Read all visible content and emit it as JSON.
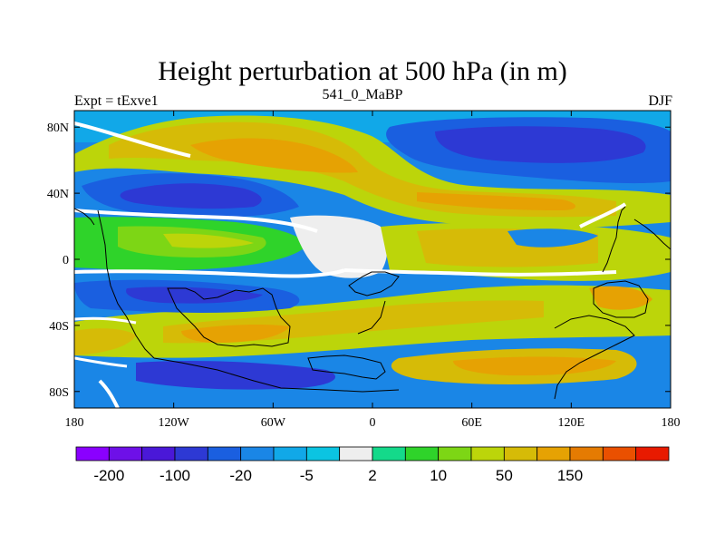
{
  "map": {
    "title": "Height perturbation at 500 hPa (in m)",
    "left_label": "Expt = tExve1",
    "center_label": "541_0_MaBP",
    "right_label": "DJF",
    "lon_range": [
      -180,
      180
    ],
    "lat_range": [
      -90,
      90
    ],
    "lon_ticks": [
      {
        "value": -180,
        "label": "180"
      },
      {
        "value": -120,
        "label": "120W"
      },
      {
        "value": -60,
        "label": "60W"
      },
      {
        "value": 0,
        "label": "0"
      },
      {
        "value": 60,
        "label": "60E"
      },
      {
        "value": 120,
        "label": "120E"
      },
      {
        "value": 180,
        "label": "180"
      }
    ],
    "lat_ticks": [
      {
        "value": 80,
        "label": "80N"
      },
      {
        "value": 40,
        "label": "40N"
      },
      {
        "value": 0,
        "label": "0"
      },
      {
        "value": -40,
        "label": "40S"
      },
      {
        "value": -80,
        "label": "80S"
      }
    ]
  },
  "colorbar": {
    "colors": [
      "#8a00ff",
      "#6e10e8",
      "#4a18d8",
      "#2d39d4",
      "#1a5fe0",
      "#1a86e6",
      "#11a8e8",
      "#0bc4e2",
      "#eeeeee",
      "#14d98a",
      "#2fd32a",
      "#7dd615",
      "#bcd50a",
      "#d6bb07",
      "#e6a203",
      "#e57b02",
      "#ea5000",
      "#e81a00"
    ],
    "labels": [
      {
        "after_box": 1,
        "text": "-200"
      },
      {
        "after_box": 3,
        "text": "-100"
      },
      {
        "after_box": 5,
        "text": "-20"
      },
      {
        "after_box": 7,
        "text": "-5"
      },
      {
        "after_box": 9,
        "text": "2"
      },
      {
        "after_box": 11,
        "text": "10"
      },
      {
        "after_box": 13,
        "text": "50"
      },
      {
        "after_box": 15,
        "text": "150"
      }
    ]
  }
}
